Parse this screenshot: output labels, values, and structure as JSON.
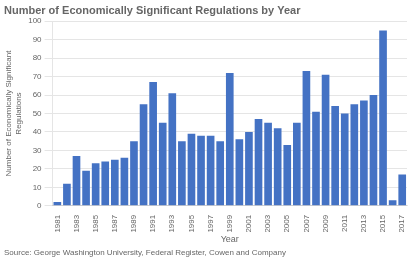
{
  "chart_data": {
    "type": "bar",
    "title": "Number of Economically Significant Regulations by Year",
    "annotations": [
      "Source: George Washington University, Federal Register, Cowen and Company"
    ],
    "x_label": "Year",
    "y_label": "Number of Economically Significant\nRegulations",
    "categories": [
      "1981",
      null,
      "1983",
      null,
      "1985",
      null,
      "1987",
      null,
      "1989",
      null,
      "1991",
      null,
      "1993",
      null,
      "1995",
      null,
      "1997",
      null,
      "1999",
      null,
      "2001",
      null,
      "2003",
      null,
      "2005",
      null,
      "2007",
      null,
      "2009",
      null,
      "2011",
      null,
      "2013",
      null,
      "2015",
      null,
      "2017"
    ],
    "values": [
      2,
      12,
      27,
      19,
      23,
      24,
      25,
      26,
      35,
      55,
      67,
      45,
      61,
      35,
      39,
      38,
      38,
      35,
      72,
      36,
      40,
      47,
      45,
      42,
      33,
      45,
      73,
      51,
      71,
      54,
      50,
      55,
      57,
      60,
      95,
      3,
      17
    ],
    "color": "#4472C4",
    "ylim": [
      0,
      100
    ],
    "yticks": [
      0,
      10,
      20,
      30,
      40,
      50,
      60,
      70,
      80,
      90,
      100
    ],
    "grid": true
  }
}
